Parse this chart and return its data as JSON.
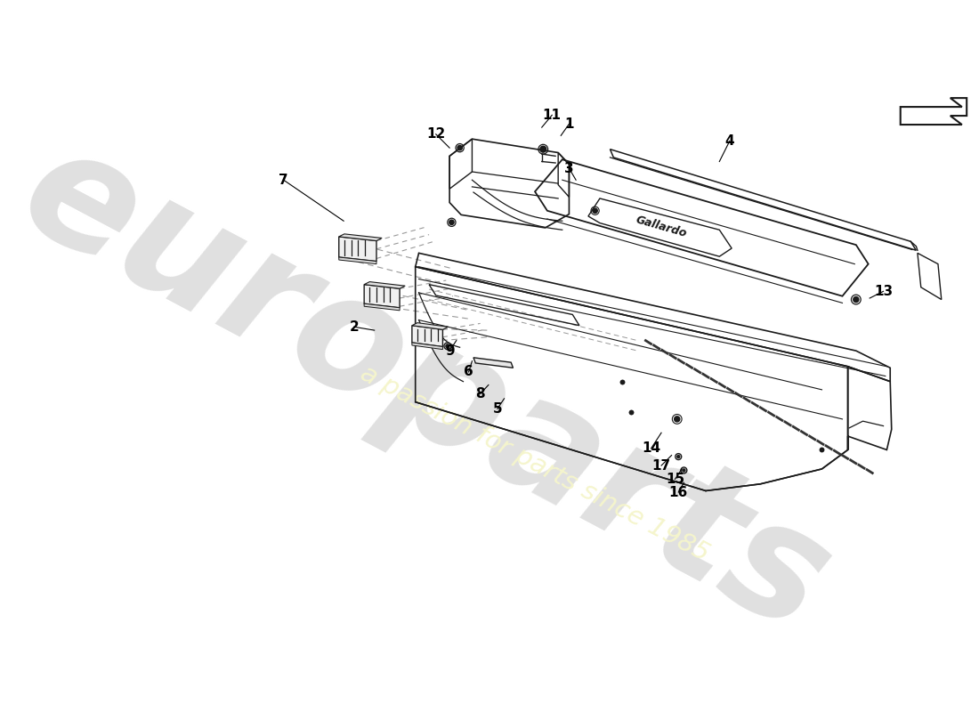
{
  "background_color": "#ffffff",
  "line_color": "#1a1a1a",
  "dashed_color": "#999999",
  "thin_color": "#444444",
  "watermark_color": "#e0e0e0",
  "watermark_text_color": "#f5f5cc",
  "part_labels": [
    [
      "1",
      500,
      113,
      488,
      130
    ],
    [
      "2",
      185,
      410,
      215,
      415
    ],
    [
      "3",
      500,
      178,
      510,
      195
    ],
    [
      "4",
      735,
      138,
      720,
      168
    ],
    [
      "5",
      395,
      530,
      405,
      515
    ],
    [
      "6",
      353,
      476,
      358,
      460
    ],
    [
      "7",
      82,
      195,
      170,
      255
    ],
    [
      "8",
      370,
      508,
      382,
      495
    ],
    [
      "9",
      325,
      445,
      335,
      430
    ],
    [
      "11",
      475,
      100,
      460,
      118
    ],
    [
      "12",
      305,
      128,
      325,
      148
    ],
    [
      "13",
      960,
      358,
      940,
      368
    ],
    [
      "14",
      620,
      588,
      635,
      565
    ],
    [
      "15",
      655,
      633,
      665,
      618
    ],
    [
      "16",
      660,
      652,
      668,
      638
    ],
    [
      "17",
      635,
      613,
      650,
      598
    ]
  ]
}
